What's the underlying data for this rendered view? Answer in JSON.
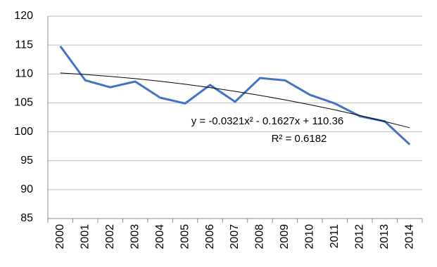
{
  "chart_data": {
    "type": "line",
    "categories": [
      "2000",
      "2001",
      "2002",
      "2003",
      "2004",
      "2005",
      "2006",
      "2007",
      "2008",
      "2009",
      "2010",
      "2011",
      "2012",
      "2013",
      "2014"
    ],
    "series": [
      {
        "color": "#4472c4",
        "values": [
          114.8,
          108.9,
          107.7,
          108.7,
          105.9,
          104.9,
          108.1,
          105.2,
          109.3,
          108.9,
          106.4,
          104.9,
          102.7,
          101.8,
          97.8
        ]
      },
      {
        "color": "#000000",
        "values": [
          110.17,
          109.91,
          109.58,
          109.2,
          108.74,
          108.23,
          107.65,
          107.0,
          106.3,
          105.52,
          104.69,
          103.79,
          102.82,
          101.79,
          100.7
        ]
      }
    ],
    "annotations": [
      "y = -0.0321x² - 0.1627x + 110.36",
      "R² = 0.6182"
    ],
    "ylim": [
      85,
      120
    ],
    "yticks": [
      85,
      90,
      95,
      100,
      105,
      110,
      115,
      120
    ],
    "grid": true
  }
}
